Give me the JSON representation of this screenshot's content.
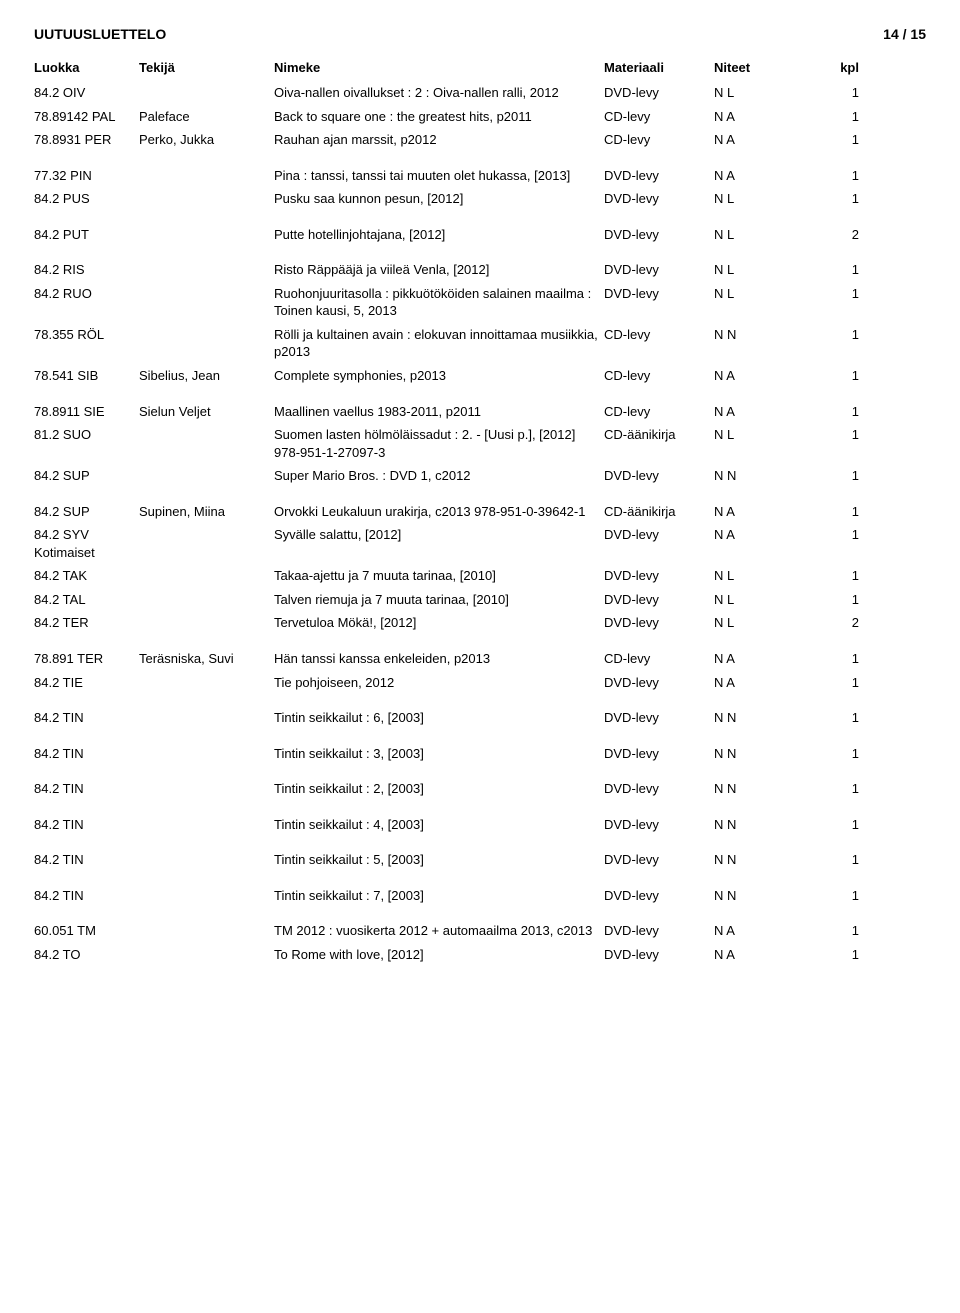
{
  "header": {
    "title": "UUTUUSLUETTELO",
    "page": "14 / 15"
  },
  "columns": {
    "luokka": "Luokka",
    "tekija": "Tekijä",
    "nimeke": "Nimeke",
    "materiaali": "Materiaali",
    "niteet": "Niteet",
    "kpl": "kpl"
  },
  "rows": [
    {
      "luokka": "84.2 OIV",
      "tekija": "",
      "nimeke": "Oiva-nallen oivallukset : 2 : Oiva-nallen ralli, 2012",
      "materiaali": "DVD-levy",
      "niteet": "N L",
      "kpl": "1"
    },
    {
      "luokka": "78.89142 PAL",
      "tekija": "Paleface",
      "nimeke": "Back to square one : the greatest hits, p2011",
      "materiaali": "CD-levy",
      "niteet": "N A",
      "kpl": "1"
    },
    {
      "luokka": "78.8931 PER",
      "tekija": "Perko, Jukka",
      "nimeke": "Rauhan ajan marssit, p2012",
      "materiaali": "CD-levy",
      "niteet": "N A",
      "kpl": "1",
      "gap": true
    },
    {
      "luokka": "77.32 PIN",
      "tekija": "",
      "nimeke": "Pina : tanssi, tanssi tai muuten olet hukassa, [2013]",
      "materiaali": "DVD-levy",
      "niteet": "N A",
      "kpl": "1"
    },
    {
      "luokka": "84.2 PUS",
      "tekija": "",
      "nimeke": "Pusku saa kunnon pesun, [2012]",
      "materiaali": "DVD-levy",
      "niteet": "N L",
      "kpl": "1",
      "gap": true
    },
    {
      "luokka": "84.2 PUT",
      "tekija": "",
      "nimeke": "Putte hotellinjohtajana, [2012]",
      "materiaali": "DVD-levy",
      "niteet": "N L",
      "kpl": "2",
      "gap": true
    },
    {
      "luokka": "84.2 RIS",
      "tekija": "",
      "nimeke": "Risto Räppääjä ja viileä Venla, [2012]",
      "materiaali": "DVD-levy",
      "niteet": "N L",
      "kpl": "1"
    },
    {
      "luokka": "84.2 RUO",
      "tekija": "",
      "nimeke": "Ruohonjuuritasolla : pikkuötököiden salainen maailma : Toinen kausi, 5, 2013",
      "materiaali": "DVD-levy",
      "niteet": "N L",
      "kpl": "1"
    },
    {
      "luokka": "78.355 RÖL",
      "tekija": "",
      "nimeke": "Rölli ja kultainen avain : elokuvan innoittamaa musiikkia, p2013",
      "materiaali": "CD-levy",
      "niteet": "N N",
      "kpl": "1"
    },
    {
      "luokka": "78.541 SIB",
      "tekija": "Sibelius, Jean",
      "nimeke": "Complete symphonies, p2013",
      "materiaali": "CD-levy",
      "niteet": "N A",
      "kpl": "1",
      "gap": true
    },
    {
      "luokka": "78.8911 SIE",
      "tekija": "Sielun Veljet",
      "nimeke": "Maallinen vaellus 1983-2011, p2011",
      "materiaali": "CD-levy",
      "niteet": "N A",
      "kpl": "1"
    },
    {
      "luokka": "81.2 SUO",
      "tekija": "",
      "nimeke": "Suomen lasten hölmöläissadut : 2. - [Uusi p.], [2012] 978-951-1-27097-3",
      "materiaali": "CD-äänikirja",
      "niteet": "N L",
      "kpl": "1"
    },
    {
      "luokka": "84.2 SUP",
      "tekija": "",
      "nimeke": "Super Mario Bros. : DVD 1, c2012",
      "materiaali": "DVD-levy",
      "niteet": "N N",
      "kpl": "1",
      "gap": true
    },
    {
      "luokka": "84.2 SUP",
      "tekija": "Supinen, Miina",
      "nimeke": "Orvokki Leukaluun urakirja, c2013 978-951-0-39642-1",
      "materiaali": "CD-äänikirja",
      "niteet": "N A",
      "kpl": "1"
    },
    {
      "luokka": "84.2 SYV Kotimaiset",
      "tekija": "",
      "nimeke": "Syvälle salattu, [2012]",
      "materiaali": "DVD-levy",
      "niteet": "N A",
      "kpl": "1"
    },
    {
      "luokka": "84.2 TAK",
      "tekija": "",
      "nimeke": "Takaa-ajettu ja 7 muuta tarinaa, [2010]",
      "materiaali": "DVD-levy",
      "niteet": "N L",
      "kpl": "1"
    },
    {
      "luokka": "84.2 TAL",
      "tekija": "",
      "nimeke": "Talven riemuja ja 7 muuta tarinaa, [2010]",
      "materiaali": "DVD-levy",
      "niteet": "N L",
      "kpl": "1"
    },
    {
      "luokka": "84.2 TER",
      "tekija": "",
      "nimeke": "Tervetuloa Mökä!, [2012]",
      "materiaali": "DVD-levy",
      "niteet": "N L",
      "kpl": "2",
      "gap": true
    },
    {
      "luokka": "78.891 TER",
      "tekija": "Teräsniska, Suvi",
      "nimeke": "Hän tanssi kanssa enkeleiden, p2013",
      "materiaali": "CD-levy",
      "niteet": "N A",
      "kpl": "1"
    },
    {
      "luokka": "84.2 TIE",
      "tekija": "",
      "nimeke": "Tie pohjoiseen, 2012",
      "materiaali": "DVD-levy",
      "niteet": "N A",
      "kpl": "1",
      "gap": true
    },
    {
      "luokka": "84.2 TIN",
      "tekija": "",
      "nimeke": "Tintin seikkailut : 6, [2003]",
      "materiaali": "DVD-levy",
      "niteet": "N N",
      "kpl": "1",
      "gap": true
    },
    {
      "luokka": "84.2 TIN",
      "tekija": "",
      "nimeke": "Tintin seikkailut : 3, [2003]",
      "materiaali": "DVD-levy",
      "niteet": "N N",
      "kpl": "1",
      "gap": true
    },
    {
      "luokka": "84.2 TIN",
      "tekija": "",
      "nimeke": "Tintin seikkailut : 2, [2003]",
      "materiaali": "DVD-levy",
      "niteet": "N N",
      "kpl": "1",
      "gap": true
    },
    {
      "luokka": "84.2 TIN",
      "tekija": "",
      "nimeke": "Tintin seikkailut : 4, [2003]",
      "materiaali": "DVD-levy",
      "niteet": "N N",
      "kpl": "1",
      "gap": true
    },
    {
      "luokka": "84.2 TIN",
      "tekija": "",
      "nimeke": "Tintin seikkailut : 5, [2003]",
      "materiaali": "DVD-levy",
      "niteet": "N N",
      "kpl": "1",
      "gap": true
    },
    {
      "luokka": "84.2 TIN",
      "tekija": "",
      "nimeke": "Tintin seikkailut : 7, [2003]",
      "materiaali": "DVD-levy",
      "niteet": "N N",
      "kpl": "1",
      "gap": true
    },
    {
      "luokka": "60.051 TM",
      "tekija": "",
      "nimeke": "TM 2012 : vuosikerta 2012 + automaailma 2013, c2013",
      "materiaali": "DVD-levy",
      "niteet": "N A",
      "kpl": "1"
    },
    {
      "luokka": "84.2 TO",
      "tekija": "",
      "nimeke": "To Rome with love, [2012]",
      "materiaali": "DVD-levy",
      "niteet": "N A",
      "kpl": "1"
    }
  ]
}
